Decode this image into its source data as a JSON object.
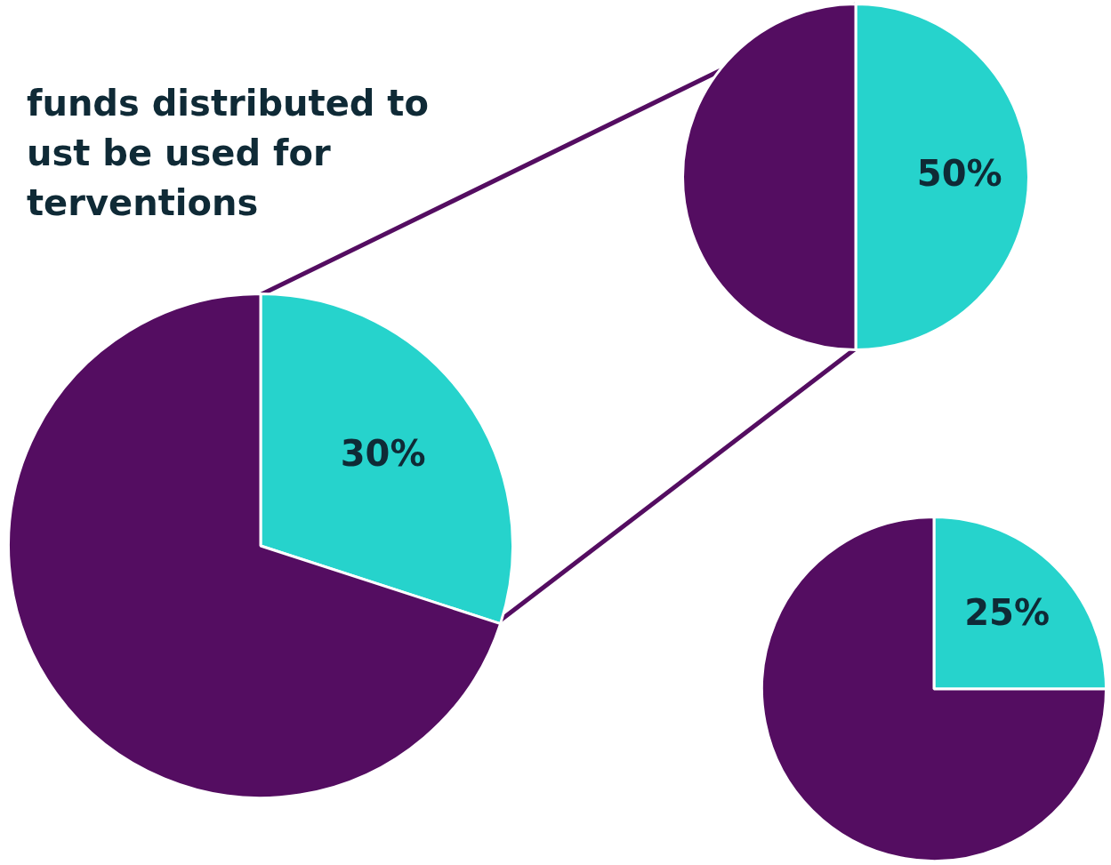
{
  "chart_data": [
    {
      "type": "pie",
      "title": "funds distributed to\nust be used for\nterventions",
      "categories": [
        null,
        null
      ],
      "values": [
        30,
        70
      ],
      "colors": [
        "#26d3cc",
        "#540d61"
      ],
      "value_labels": [
        "30%",
        null
      ]
    },
    {
      "type": "pie",
      "categories": [
        null,
        null
      ],
      "values": [
        50,
        50
      ],
      "colors": [
        "#26d3cc",
        "#540d61"
      ],
      "value_labels": [
        "50%",
        null
      ]
    },
    {
      "type": "pie",
      "categories": [
        null,
        null
      ],
      "values": [
        25,
        75
      ],
      "colors": [
        "#26d3cc",
        "#540d61"
      ],
      "value_labels": [
        "25%",
        null
      ]
    }
  ]
}
